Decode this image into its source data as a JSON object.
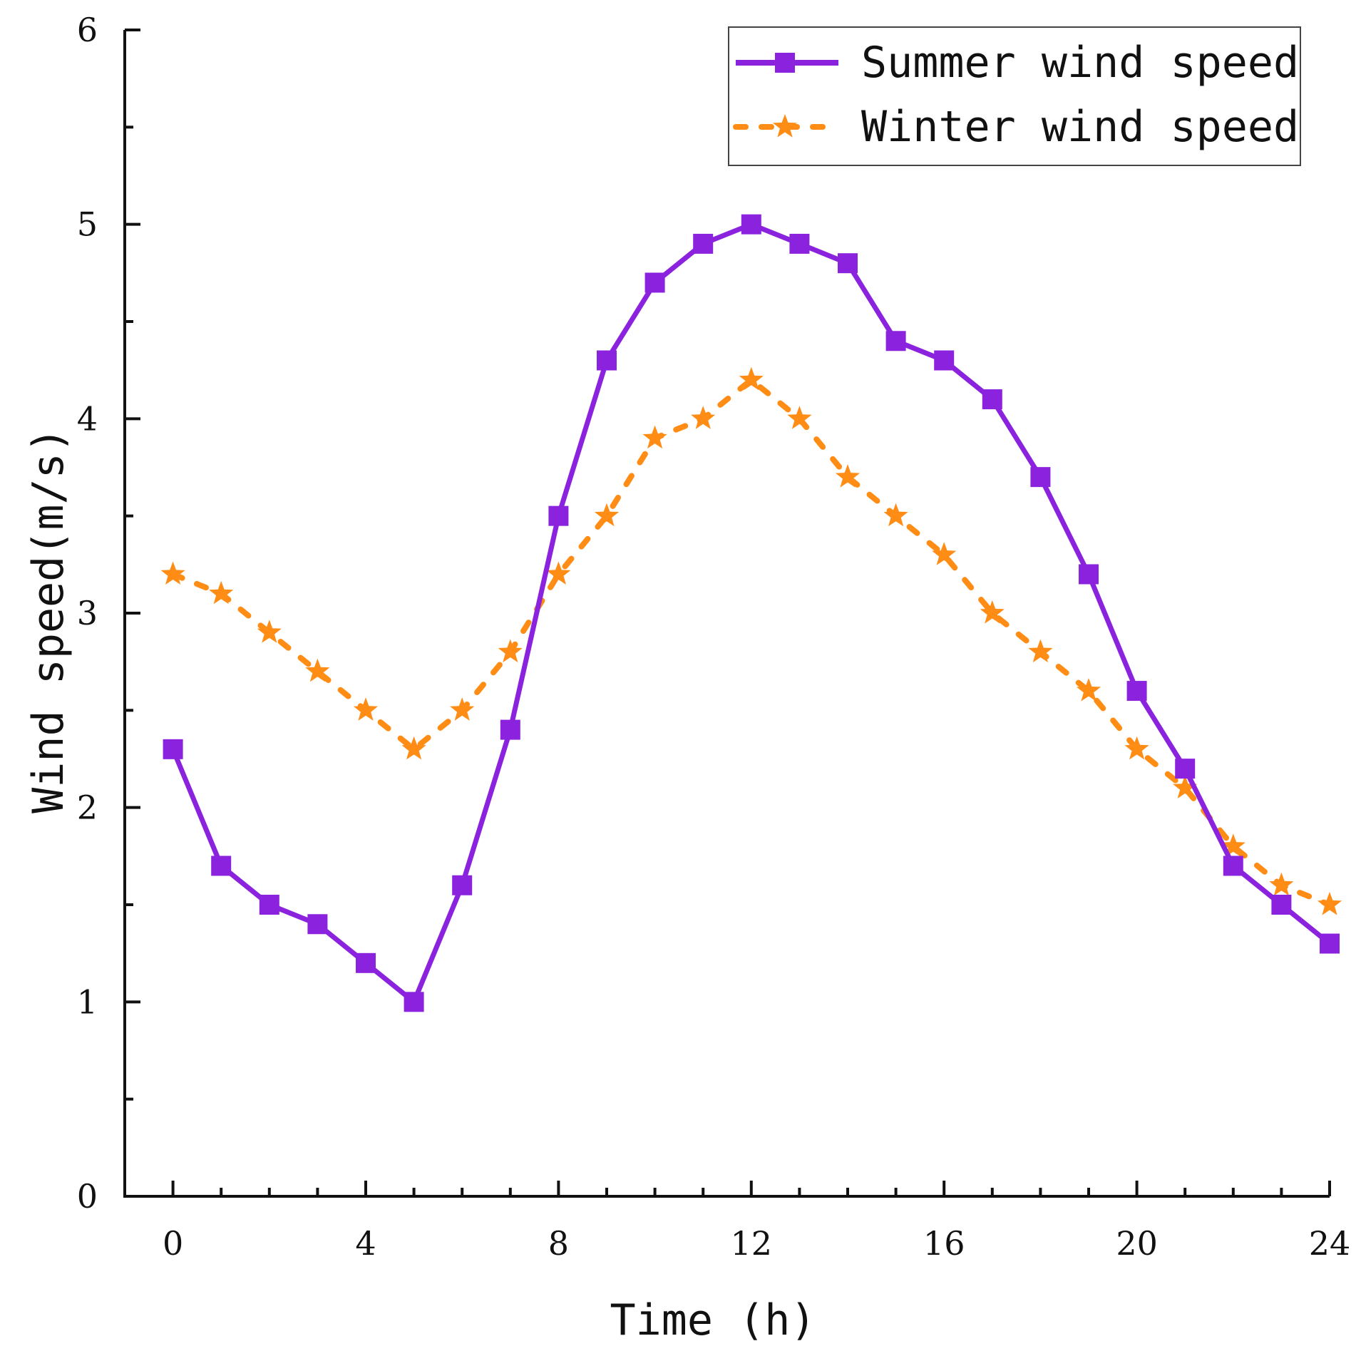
{
  "chart_data": {
    "type": "line",
    "title": "",
    "xlabel": "Time (h)",
    "ylabel": "Wind speed(m/s)",
    "xlim": [
      -1,
      24
    ],
    "ylim": [
      0,
      6
    ],
    "x_ticks": [
      0,
      4,
      8,
      12,
      16,
      20,
      24
    ],
    "x_tick_labels": [
      "0",
      "4",
      "8",
      "12",
      "16",
      "20",
      "24"
    ],
    "y_ticks": [
      0,
      1,
      2,
      3,
      4,
      5,
      6
    ],
    "y_tick_labels": [
      "0",
      "1",
      "2",
      "3",
      "4",
      "5",
      "6"
    ],
    "grid": false,
    "legend_position": "top-right",
    "x": [
      0,
      1,
      2,
      3,
      4,
      5,
      6,
      7,
      8,
      9,
      10,
      11,
      12,
      13,
      14,
      15,
      16,
      17,
      18,
      19,
      20,
      21,
      22,
      23,
      24
    ],
    "series": [
      {
        "name": "Summer wind speed",
        "color": "#8B22DD",
        "marker": "square",
        "line": "solid",
        "values": [
          2.3,
          1.7,
          1.5,
          1.4,
          1.2,
          1.0,
          1.6,
          2.4,
          3.5,
          4.3,
          4.7,
          4.9,
          5.0,
          4.9,
          4.8,
          4.4,
          4.3,
          4.1,
          3.7,
          3.2,
          2.6,
          2.2,
          1.7,
          1.5,
          1.3
        ]
      },
      {
        "name": "Winter wind speed",
        "color": "#FF8C14",
        "marker": "star",
        "line": "dashed",
        "values": [
          3.2,
          3.1,
          2.9,
          2.7,
          2.5,
          2.3,
          2.5,
          2.8,
          3.2,
          3.5,
          3.9,
          4.0,
          4.2,
          4.0,
          3.7,
          3.5,
          3.3,
          3.0,
          2.8,
          2.6,
          2.3,
          2.1,
          1.8,
          1.6,
          1.5
        ]
      }
    ]
  }
}
